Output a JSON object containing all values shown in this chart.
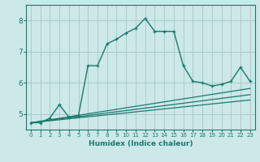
{
  "xlabel": "Humidex (Indice chaleur)",
  "background_color": "#cce8e8",
  "grid_color": "#aacccc",
  "line_color": "#1a7a6e",
  "xlim": [
    -0.5,
    23.5
  ],
  "ylim": [
    4.5,
    8.5
  ],
  "xticks": [
    0,
    1,
    2,
    3,
    4,
    5,
    6,
    7,
    8,
    9,
    10,
    11,
    12,
    13,
    14,
    15,
    16,
    17,
    18,
    19,
    20,
    21,
    22,
    23
  ],
  "yticks": [
    5,
    6,
    7,
    8
  ],
  "main_x": [
    0,
    1,
    2,
    3,
    4,
    5,
    6,
    7,
    8,
    9,
    10,
    11,
    12,
    13,
    14,
    15,
    16,
    17,
    18,
    19,
    20,
    21,
    22,
    23
  ],
  "main_y": [
    4.72,
    4.72,
    4.87,
    5.3,
    4.9,
    4.95,
    6.55,
    6.55,
    7.25,
    7.4,
    7.6,
    7.75,
    8.07,
    7.65,
    7.65,
    7.65,
    6.55,
    6.05,
    6.0,
    5.9,
    5.95,
    6.05,
    6.5,
    6.05
  ],
  "line1_x": [
    0,
    23
  ],
  "line1_y": [
    4.72,
    5.45
  ],
  "line2_x": [
    0,
    23
  ],
  "line2_y": [
    4.72,
    5.62
  ],
  "line3_x": [
    0,
    23
  ],
  "line3_y": [
    4.72,
    5.82
  ]
}
